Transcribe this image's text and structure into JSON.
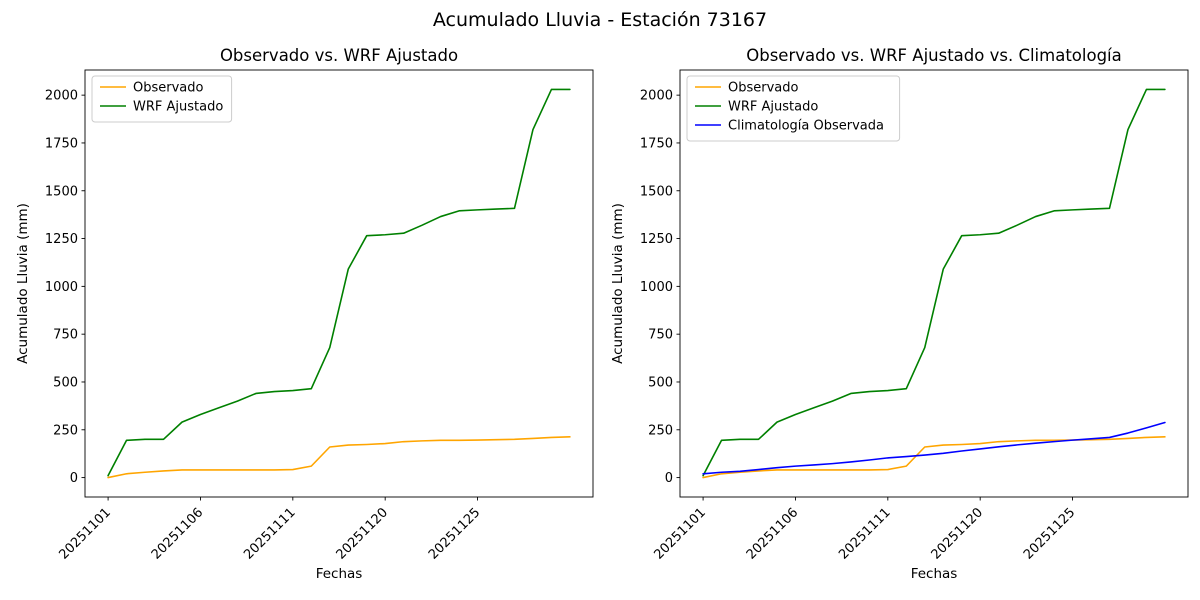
{
  "figure": {
    "title": "Acumulado Lluvia - Estación 73167",
    "background": "#ffffff"
  },
  "colors": {
    "observado": "#ffa500",
    "wrf_ajustado": "#008000",
    "climatologia_observada": "#0000ff",
    "axes": "#000000",
    "legend_border": "#cccccc"
  },
  "chart_data": [
    {
      "type": "line",
      "title": "Observado vs. WRF Ajustado",
      "xlabel": "Fechas",
      "ylabel": "Acumulado Lluvia (mm)",
      "legend_position": "upper left",
      "grid": false,
      "xlim": [
        -1.25,
        26.25
      ],
      "ylim": [
        -101.5,
        2131.5
      ],
      "yticks": [
        0,
        250,
        500,
        750,
        1000,
        1250,
        1500,
        1750,
        2000
      ],
      "xticks_pos": [
        0,
        5,
        10,
        15,
        20
      ],
      "xticks_labels": [
        "20251101",
        "20251106",
        "20251111",
        "20251120",
        "20251125"
      ],
      "series": [
        {
          "name": "Observado",
          "color": "#ffa500",
          "values": [
            0,
            20,
            28,
            35,
            40,
            40,
            40,
            40,
            40,
            40,
            42,
            60,
            160,
            170,
            173,
            178,
            188,
            192,
            195,
            195,
            196,
            198,
            200,
            205,
            210,
            213
          ]
        },
        {
          "name": "WRF Ajustado",
          "color": "#008000",
          "values": [
            10,
            195,
            200,
            200,
            290,
            330,
            365,
            400,
            440,
            450,
            455,
            465,
            680,
            1090,
            1265,
            1270,
            1278,
            1320,
            1365,
            1395,
            1400,
            1404,
            1408,
            1820,
            2030,
            2030
          ]
        }
      ]
    },
    {
      "type": "line",
      "title": "Observado vs. WRF Ajustado vs. Climatología",
      "xlabel": "Fechas",
      "ylabel": "Acumulado Lluvia (mm)",
      "legend_position": "upper left",
      "grid": false,
      "xlim": [
        -1.25,
        26.25
      ],
      "ylim": [
        -101.5,
        2131.5
      ],
      "yticks": [
        0,
        250,
        500,
        750,
        1000,
        1250,
        1500,
        1750,
        2000
      ],
      "xticks_pos": [
        0,
        5,
        10,
        15,
        20
      ],
      "xticks_labels": [
        "20251101",
        "20251106",
        "20251111",
        "20251120",
        "20251125"
      ],
      "series": [
        {
          "name": "Observado",
          "color": "#ffa500",
          "values": [
            0,
            20,
            28,
            35,
            40,
            40,
            40,
            40,
            40,
            40,
            42,
            60,
            160,
            170,
            173,
            178,
            188,
            192,
            195,
            195,
            196,
            198,
            200,
            205,
            210,
            213
          ]
        },
        {
          "name": "WRF Ajustado",
          "color": "#008000",
          "values": [
            10,
            195,
            200,
            200,
            290,
            330,
            365,
            400,
            440,
            450,
            455,
            465,
            680,
            1090,
            1265,
            1270,
            1278,
            1320,
            1365,
            1395,
            1400,
            1404,
            1408,
            1820,
            2030,
            2030
          ]
        },
        {
          "name": "Climatología Observada",
          "color": "#0000ff",
          "values": [
            20,
            28,
            33,
            42,
            52,
            60,
            66,
            73,
            82,
            92,
            103,
            110,
            118,
            127,
            139,
            150,
            161,
            171,
            180,
            188,
            196,
            203,
            210,
            233,
            260,
            288
          ]
        }
      ]
    }
  ]
}
